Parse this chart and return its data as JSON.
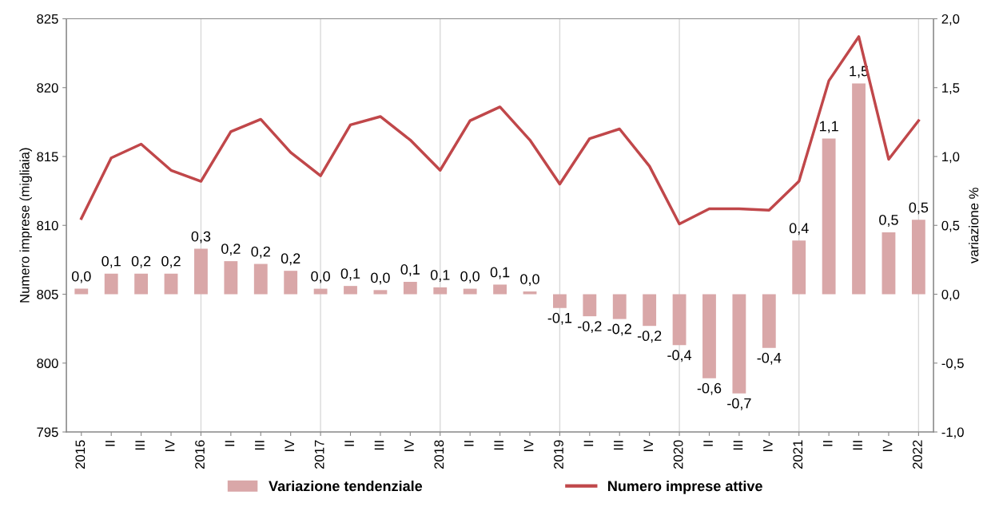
{
  "chart_data": {
    "type": "bar",
    "ylabel": "Numero imprese (migliaia)",
    "y2label": "variazione %",
    "categories": [
      "2015",
      "II",
      "III",
      "IV",
      "2016",
      "II",
      "III",
      "IV",
      "2017",
      "II",
      "III",
      "IV",
      "2018",
      "II",
      "III",
      "IV",
      "2019",
      "II",
      "III",
      "IV",
      "2020",
      "II",
      "III",
      "IV",
      "2021",
      "II",
      "III",
      "IV",
      "2022"
    ],
    "series": [
      {
        "name": "Variazione tendenziale",
        "axis": "y2",
        "color": "#d9a7a8",
        "values": [
          0.04,
          0.15,
          0.15,
          0.15,
          0.33,
          0.24,
          0.22,
          0.17,
          0.04,
          0.06,
          0.03,
          0.09,
          0.05,
          0.04,
          0.07,
          0.02,
          -0.1,
          -0.16,
          -0.18,
          -0.23,
          -0.37,
          -0.61,
          -0.72,
          -0.39,
          0.39,
          1.13,
          1.53,
          0.45,
          0.54
        ],
        "value_labels": [
          "0,0",
          "0,1",
          "0,2",
          "0,2",
          "0,3",
          "0,2",
          "0,2",
          "0,2",
          "0,0",
          "0,1",
          "0,0",
          "0,1",
          "0,1",
          "0,0",
          "0,1",
          "0,0",
          "-0,1",
          "-0,2",
          "-0,2",
          "-0,2",
          "-0,4",
          "-0,6",
          "-0,7",
          "-0,4",
          "0,4",
          "1,1",
          "1,5",
          "0,5",
          "0,5"
        ]
      },
      {
        "name": "Numero imprese attive",
        "type": "line",
        "color": "#c0474a",
        "values": [
          810.5,
          814.9,
          815.9,
          814.0,
          813.2,
          816.8,
          817.7,
          815.3,
          813.6,
          817.3,
          817.9,
          816.2,
          814.0,
          817.6,
          818.6,
          816.2,
          813.0,
          816.3,
          817.0,
          814.3,
          810.1,
          811.2,
          811.2,
          811.1,
          813.2,
          820.5,
          823.7,
          814.8,
          817.6
        ]
      }
    ],
    "ylim": [
      795,
      825
    ],
    "yticks": [
      795,
      800,
      805,
      810,
      815,
      820,
      825
    ],
    "y2lim": [
      -1.0,
      2.0
    ],
    "y2ticks": [
      {
        "value": -1.0,
        "label": "-1,0"
      },
      {
        "value": -0.5,
        "label": "-0,5"
      },
      {
        "value": 0.0,
        "label": "0,0"
      },
      {
        "value": 0.5,
        "label": "0,5"
      },
      {
        "value": 1.0,
        "label": "1,0"
      },
      {
        "value": 1.5,
        "label": "1,5"
      },
      {
        "value": 2.0,
        "label": "2,0"
      }
    ],
    "ref_lines": [
      {
        "axis": "x",
        "value": "2016",
        "color": "#d9d9d9"
      },
      {
        "axis": "x",
        "value": "2017",
        "color": "#d9d9d9"
      },
      {
        "axis": "x",
        "value": "2018",
        "color": "#d9d9d9"
      },
      {
        "axis": "x",
        "value": "2019",
        "color": "#d9d9d9"
      },
      {
        "axis": "x",
        "value": "2020",
        "color": "#d9d9d9"
      },
      {
        "axis": "x",
        "value": "2021",
        "color": "#d9d9d9"
      },
      {
        "axis": "x",
        "value": "2022",
        "color": "#d9d9d9"
      }
    ],
    "legend": "bottom",
    "grid": false
  }
}
